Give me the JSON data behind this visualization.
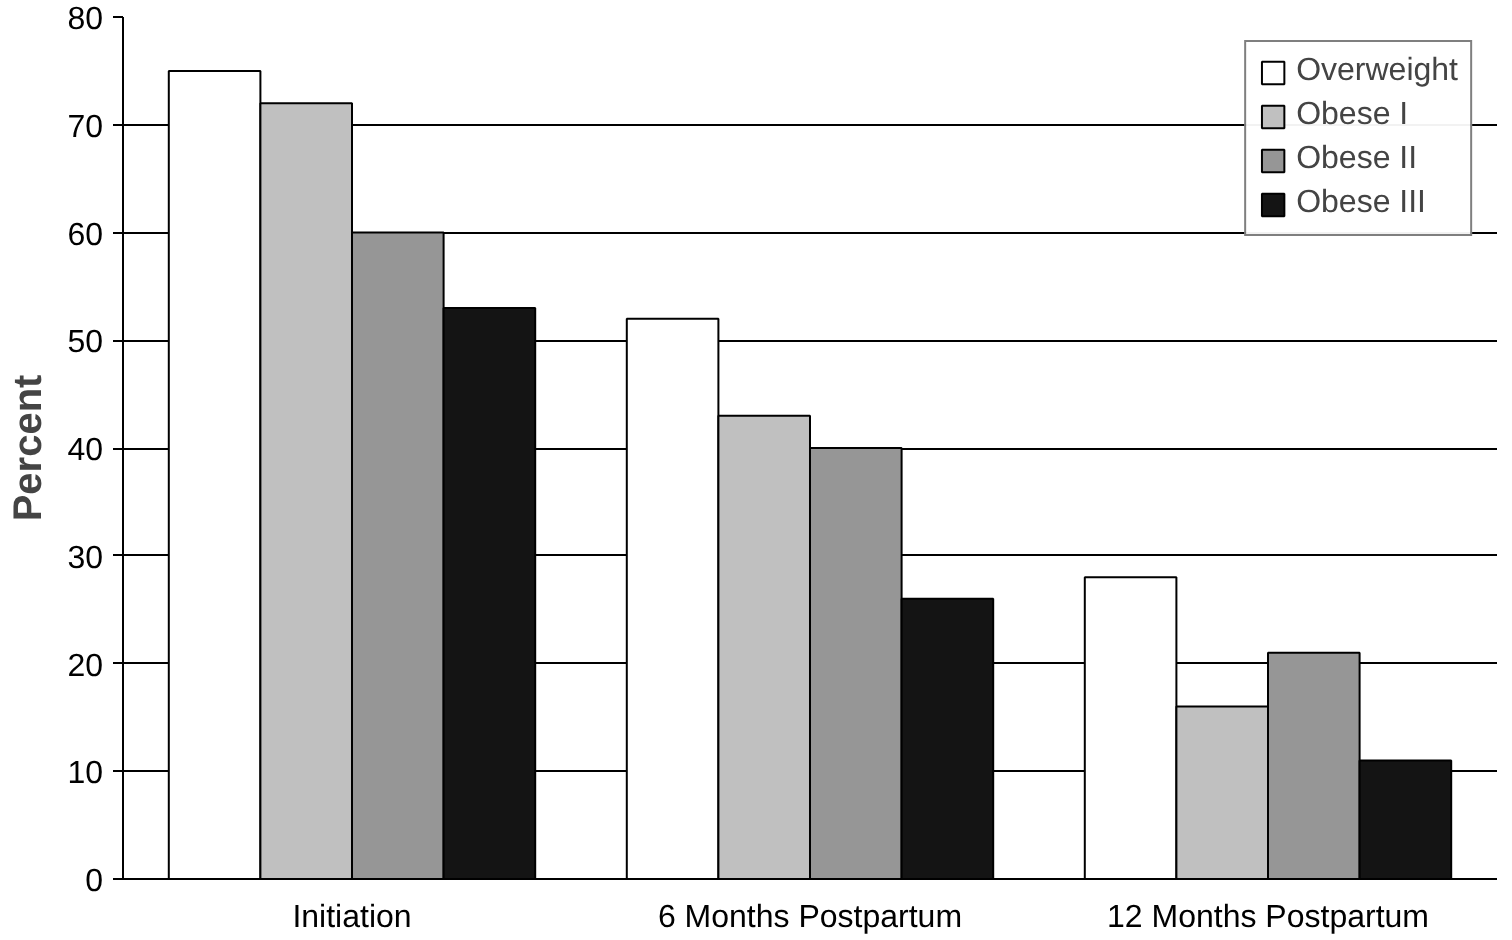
{
  "chart_data": {
    "type": "bar",
    "ylabel": "Percent",
    "categories": [
      "Initiation",
      "6 Months Postpartum",
      "12 Months Postpartum"
    ],
    "series": [
      {
        "name": "Overweight",
        "color": "#ffffff",
        "values": [
          75,
          52,
          28
        ]
      },
      {
        "name": "Obese I",
        "color": "#c0c0c0",
        "values": [
          72,
          43,
          16
        ]
      },
      {
        "name": "Obese II",
        "color": "#969696",
        "values": [
          60,
          40,
          21
        ]
      },
      {
        "name": "Obese III",
        "color": "#141414",
        "values": [
          53,
          26,
          11
        ]
      }
    ],
    "ylim": [
      0,
      80
    ],
    "yticks": [
      0,
      10,
      20,
      30,
      40,
      50,
      60,
      70,
      80
    ],
    "grid": "y",
    "legend": "top right"
  }
}
